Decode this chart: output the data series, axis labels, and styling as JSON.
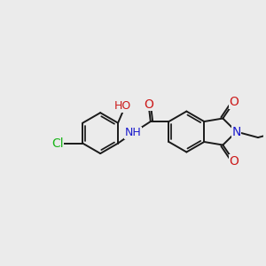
{
  "bg_color": "#ebebeb",
  "bond_color": "#1a1a1a",
  "bond_width": 1.4,
  "atom_colors": {
    "C": "#1a1a1a",
    "N": "#1a1acc",
    "O": "#cc1a1a",
    "Cl": "#1ab51a",
    "H": "#1a1acc"
  },
  "font_size": 9.5,
  "fig_size": [
    3.0,
    3.0
  ],
  "dpi": 100
}
